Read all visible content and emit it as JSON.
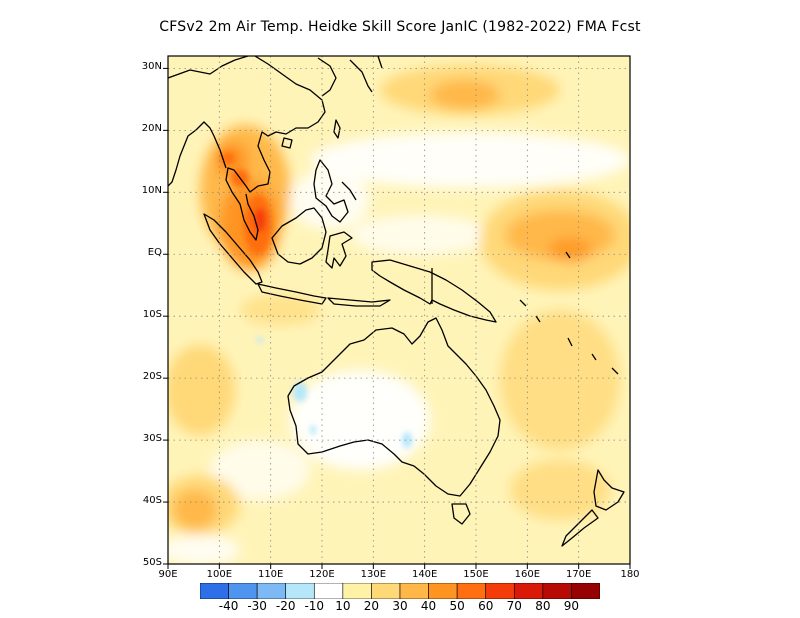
{
  "title": "CFSv2  2m Air Temp. Heidke Skill Score JanIC (1982-2022) FMA Fcst",
  "map": {
    "lat_ticks": [
      {
        "label": "30N",
        "lat": 30
      },
      {
        "label": "20N",
        "lat": 20
      },
      {
        "label": "10N",
        "lat": 10
      },
      {
        "label": "EQ",
        "lat": 0
      },
      {
        "label": "10S",
        "lat": -10
      },
      {
        "label": "20S",
        "lat": -20
      },
      {
        "label": "30S",
        "lat": -30
      },
      {
        "label": "40S",
        "lat": -40
      },
      {
        "label": "50S",
        "lat": -50
      }
    ],
    "lon_ticks": [
      {
        "label": "90E",
        "lon": 90
      },
      {
        "label": "100E",
        "lon": 100
      },
      {
        "label": "110E",
        "lon": 110
      },
      {
        "label": "120E",
        "lon": 120
      },
      {
        "label": "130E",
        "lon": 130
      },
      {
        "label": "140E",
        "lon": 140
      },
      {
        "label": "150E",
        "lon": 150
      },
      {
        "label": "160E",
        "lon": 160
      },
      {
        "label": "170E",
        "lon": 170
      },
      {
        "label": "180",
        "lon": 180
      }
    ],
    "lat_range": [
      -50,
      32
    ],
    "lon_range": [
      90,
      180
    ],
    "grid": "dotted"
  },
  "colorbar": {
    "labels": [
      "-40",
      "-30",
      "-20",
      "-10",
      "10",
      "20",
      "30",
      "40",
      "50",
      "60",
      "70",
      "80",
      "90"
    ],
    "colors": [
      "#2d6fe8",
      "#4f95f0",
      "#7dbaf5",
      "#b5e6fa",
      "#ffffff",
      "#fff2a6",
      "#ffd878",
      "#ffb848",
      "#ff9420",
      "#ff6e10",
      "#f43c0a",
      "#d81a06",
      "#b80a04",
      "#960202"
    ]
  },
  "palette": {
    "ocean_base": "#fff4b8",
    "skill_20": "#fff2a6",
    "skill_30": "#ffd878",
    "skill_40": "#ffb848",
    "skill_50": "#ff9420",
    "skill_60": "#ff6e10",
    "skill_70": "#f43c0a",
    "neg_10": "#b5e6fa",
    "coast": "#000000"
  }
}
